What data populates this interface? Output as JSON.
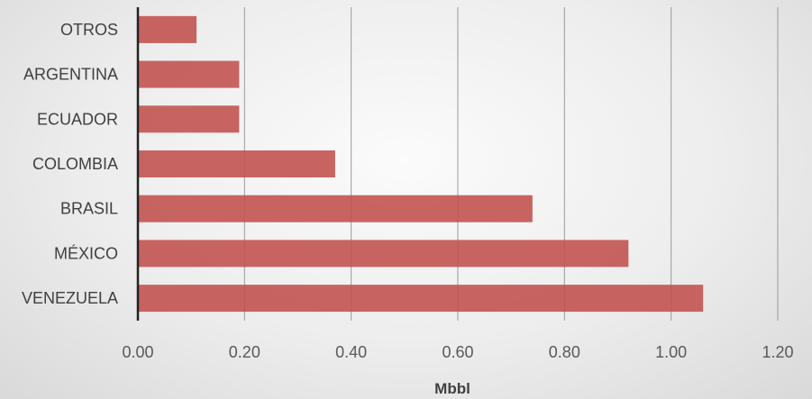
{
  "chart_data": {
    "type": "bar",
    "orientation": "horizontal",
    "categories": [
      "OTROS",
      "ARGENTINA",
      "ECUADOR",
      "COLOMBIA",
      "BRASIL",
      "MÉXICO",
      "VENEZUELA"
    ],
    "values": [
      0.11,
      0.19,
      0.19,
      0.37,
      0.74,
      0.92,
      1.06
    ],
    "xlabel": "Mbbl",
    "ylabel": "",
    "xlim": [
      0,
      1.2
    ],
    "xticks": [
      "0.00",
      "0.20",
      "0.40",
      "0.60",
      "0.80",
      "1.00",
      "1.20"
    ],
    "grid": true,
    "bar_color": "#c0504d"
  }
}
